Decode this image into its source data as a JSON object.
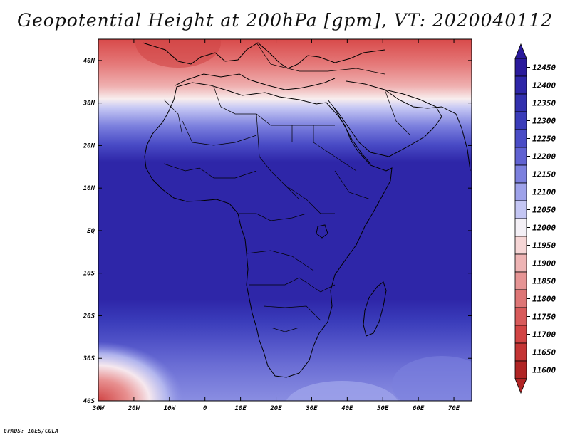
{
  "title": "Geopotential Height at 200hPa [gpm], VT: 2020040112",
  "credit": "GrADS: IGES/COLA",
  "map": {
    "lon_range": [
      -30,
      75
    ],
    "lat_range": [
      -40,
      45
    ],
    "lat_ticks": [
      {
        "value": 40,
        "label": "40N"
      },
      {
        "value": 30,
        "label": "30N"
      },
      {
        "value": 20,
        "label": "20N"
      },
      {
        "value": 10,
        "label": "10N"
      },
      {
        "value": 0,
        "label": "EQ"
      },
      {
        "value": -10,
        "label": "10S"
      },
      {
        "value": -20,
        "label": "20S"
      },
      {
        "value": -30,
        "label": "30S"
      },
      {
        "value": -40,
        "label": "40S"
      }
    ],
    "lon_ticks": [
      {
        "value": -30,
        "label": "30W"
      },
      {
        "value": -20,
        "label": "20W"
      },
      {
        "value": -10,
        "label": "10W"
      },
      {
        "value": 0,
        "label": "0"
      },
      {
        "value": 10,
        "label": "10E"
      },
      {
        "value": 20,
        "label": "20E"
      },
      {
        "value": 30,
        "label": "30E"
      },
      {
        "value": 40,
        "label": "40E"
      },
      {
        "value": 50,
        "label": "50E"
      },
      {
        "value": 60,
        "label": "60E"
      },
      {
        "value": 70,
        "label": "70E"
      }
    ]
  },
  "colorbar": {
    "levels": [
      {
        "label": "12450",
        "color": "#2a1a9c"
      },
      {
        "label": "12400",
        "color": "#2e26a8"
      },
      {
        "label": "12350",
        "color": "#3230ae"
      },
      {
        "label": "12300",
        "color": "#3a3cba"
      },
      {
        "label": "12250",
        "color": "#4a4cc6"
      },
      {
        "label": "12200",
        "color": "#6062d2"
      },
      {
        "label": "12150",
        "color": "#7c80de"
      },
      {
        "label": "12100",
        "color": "#9ea2ea"
      },
      {
        "label": "12050",
        "color": "#c4c6f4"
      },
      {
        "label": "12000",
        "color": "#f4f0f6"
      },
      {
        "label": "11950",
        "color": "#f6d6d6"
      },
      {
        "label": "11900",
        "color": "#eeb4b4"
      },
      {
        "label": "11850",
        "color": "#e69494"
      },
      {
        "label": "11800",
        "color": "#de7676"
      },
      {
        "label": "11750",
        "color": "#d85a5a"
      },
      {
        "label": "11700",
        "color": "#d24444"
      },
      {
        "label": "11650",
        "color": "#c43434"
      },
      {
        "label": "11600",
        "color": "#b02424"
      }
    ]
  }
}
